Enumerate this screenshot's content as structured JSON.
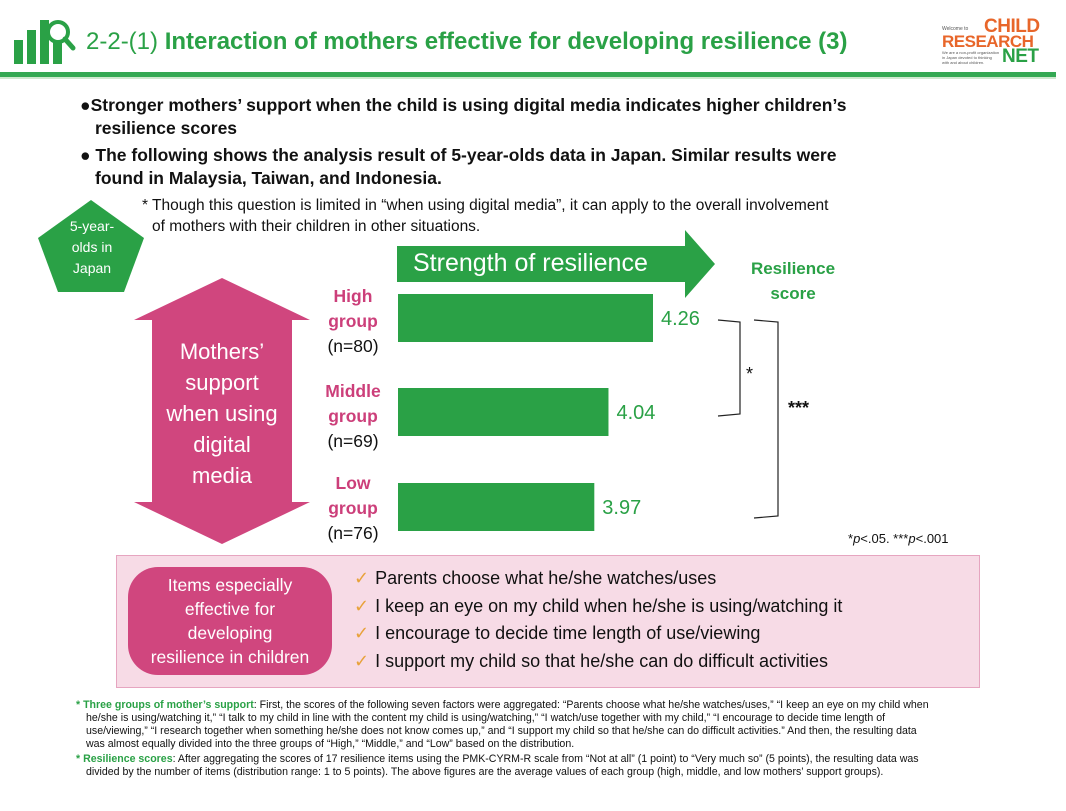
{
  "header": {
    "section_number": "2-2-(1)",
    "title": "Interaction of mothers effective for developing resilience (3)",
    "logo": {
      "small_text": "Welcome to",
      "line1": "CHILD",
      "line2": "RESEARCH",
      "line3": "NET",
      "tagline": "We are a non-profit organization in Japan devoted to thinking with and about children."
    },
    "colors": {
      "accent_green": "#2aa146",
      "pink": "#d0467e",
      "logo_orange": "#e8662a"
    }
  },
  "bullets": [
    {
      "line1": "●Stronger mothers’ support when the child is using digital media indicates higher children’s",
      "line2": "resilience scores"
    },
    {
      "line1": "● The following shows the analysis result of 5-year-olds data in Japan. Similar results were",
      "line2": "found in Malaysia, Taiwan, and Indonesia."
    }
  ],
  "note": {
    "line1": "* Though this question is limited in “when using digital media”, it can apply to the overall involvement",
    "line2": "of mothers with their children in other situations."
  },
  "pentagon": {
    "line1": "5-year-",
    "line2": "olds in",
    "line3": "Japan"
  },
  "arrow_label": "Strength of resilience",
  "score_head": {
    "line1": "Resilience",
    "line2": "score"
  },
  "left_arrow": {
    "line1": "Mothers’",
    "line2": "support",
    "line3": "when using",
    "line4": "digital",
    "line5": "media"
  },
  "groups": [
    {
      "name1": "High",
      "name2": "group",
      "n": "(n=80)",
      "value_label": "4.26"
    },
    {
      "name1": "Middle",
      "name2": "group",
      "n": "(n=69)",
      "value_label": "4.04"
    },
    {
      "name1": "Low",
      "name2": "group",
      "n": "(n=76)",
      "value_label": "3.97"
    }
  ],
  "significance": {
    "pair1": "*",
    "pair2": "***",
    "note_prefix": "*",
    "p1": "p",
    "note_mid": "<.05. ***",
    "p2": "p",
    "note_end": "<.001"
  },
  "items_box": {
    "title_lines": [
      "Items especially",
      "effective for",
      "developing",
      "resilience in children"
    ],
    "check_icon": "checkmark-icon",
    "items": [
      "Parents choose what he/she watches/uses",
      "I keep an eye on my child when he/she is using/watching it",
      "I encourage to decide time length of use/viewing",
      "I support my child so that he/she can do difficult activities"
    ]
  },
  "footnotes": [
    {
      "label": "* Three groups of mother’s support",
      "text1": ": First, the scores of the following seven factors were aggregated: “Parents choose what he/she watches/uses,” “I keep an eye on my child when",
      "text2": "he/she is using/watching it,” “I talk to my child in line with the content my child is using/watching,” “I watch/use together with my child,” “I encourage to decide time length of",
      "text3": "use/viewing,” “I research together when something he/she does not know comes up,” and “I support my child so that he/she can do difficult activities.” And then, the resulting data",
      "text4": "was almost equally divided into the three groups of “High,” “Middle,” and “Low” based on the distribution."
    },
    {
      "label": "* Resilience scores",
      "text1": ": After aggregating the scores of 17 resilience items using the PMK-CYRM-R scale from “Not at all” (1 point) to “Very much so” (5 points), the resulting data was",
      "text2": "divided by the number of items (distribution range: 1 to 5 points). The above figures are the average values of each group (high, middle, and low mothers’ support groups)."
    }
  ],
  "chart_data": {
    "type": "bar",
    "orientation": "horizontal",
    "categories": [
      "High group (n=80)",
      "Middle group (n=69)",
      "Low group (n=76)"
    ],
    "values": [
      4.26,
      4.04,
      3.97
    ],
    "bar_color": "#2aa146",
    "grid": false,
    "legend": "none"
  }
}
